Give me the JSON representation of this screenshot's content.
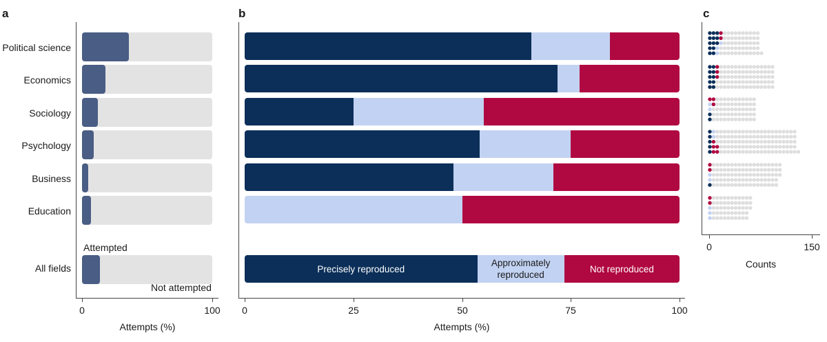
{
  "panels": {
    "a": "a",
    "b": "b",
    "c": "c"
  },
  "colors": {
    "precise": "#0b2f59",
    "approx": "#c2d2f2",
    "not_reproduced": "#b00840",
    "attempted": "#4a5d85",
    "not_attempted": "#e3e3e3",
    "dot_empty": "#dedede"
  },
  "categories": [
    "Political science",
    "Economics",
    "Sociology",
    "Psychology",
    "Business",
    "Education"
  ],
  "all_fields_label": "All fields",
  "panel_a": {
    "xlabel": "Attempts (%)",
    "ticks": [
      "0",
      "100"
    ],
    "attempted_label": "Attempted",
    "not_attempted_label": "Not attempted"
  },
  "panel_b": {
    "xlabel": "Attempts (%)",
    "ticks": [
      "0",
      "25",
      "50",
      "75",
      "100"
    ],
    "legend_labels": {
      "precise": "Precisely reproduced",
      "approx": "Approximately reproduced",
      "not_reproduced": "Not reproduced"
    }
  },
  "panel_c": {
    "xlabel": "Counts",
    "ticks": [
      "0",
      "150"
    ]
  },
  "chart_data": [
    {
      "type": "bar",
      "panel": "a",
      "categories": [
        "Political science",
        "Economics",
        "Sociology",
        "Psychology",
        "Business",
        "Education",
        "All fields"
      ],
      "series": [
        {
          "name": "Attempted",
          "values": [
            36,
            18,
            12,
            9,
            5,
            7,
            14
          ]
        },
        {
          "name": "Not attempted",
          "values": [
            64,
            82,
            88,
            91,
            95,
            93,
            86
          ]
        }
      ],
      "xlabel": "Attempts (%)",
      "xlim": [
        0,
        100
      ]
    },
    {
      "type": "bar",
      "panel": "b",
      "stacked": true,
      "categories": [
        "Political science",
        "Economics",
        "Sociology",
        "Psychology",
        "Business",
        "Education",
        "All fields"
      ],
      "series": [
        {
          "name": "Precisely reproduced",
          "values": [
            66,
            72,
            25,
            54,
            48,
            0,
            53.5
          ]
        },
        {
          "name": "Approximately reproduced",
          "values": [
            18,
            5,
            30,
            21,
            23,
            50,
            20
          ]
        },
        {
          "name": "Not reproduced",
          "values": [
            16,
            23,
            45,
            25,
            29,
            50,
            26.5
          ]
        }
      ],
      "xlabel": "Attempts (%)",
      "xlim": [
        0,
        100
      ]
    },
    {
      "type": "scatter",
      "panel": "c",
      "categories": [
        "Political science",
        "Economics",
        "Sociology",
        "Psychology",
        "Business",
        "Education"
      ],
      "rows_per_category": [
        [
          {
            "precise": 3,
            "approx": 0,
            "not": 1,
            "empty": 10
          },
          {
            "precise": 3,
            "approx": 0,
            "not": 1,
            "empty": 10
          },
          {
            "precise": 3,
            "approx": 1,
            "not": 0,
            "empty": 10
          },
          {
            "precise": 2,
            "approx": 1,
            "not": 0,
            "empty": 11
          },
          {
            "precise": 2,
            "approx": 1,
            "not": 0,
            "empty": 12
          }
        ],
        [
          {
            "precise": 2,
            "approx": 0,
            "not": 1,
            "empty": 15
          },
          {
            "precise": 2,
            "approx": 0,
            "not": 1,
            "empty": 15
          },
          {
            "precise": 2,
            "approx": 0,
            "not": 1,
            "empty": 15
          },
          {
            "precise": 2,
            "approx": 0,
            "not": 0,
            "empty": 16
          },
          {
            "precise": 2,
            "approx": 0,
            "not": 0,
            "empty": 16
          }
        ],
        [
          {
            "precise": 0,
            "approx": 0,
            "not": 2,
            "empty": 11
          },
          {
            "precise": 0,
            "approx": 1,
            "not": 1,
            "empty": 11
          },
          {
            "precise": 0,
            "approx": 1,
            "not": 0,
            "empty": 12
          },
          {
            "precise": 1,
            "approx": 0,
            "not": 0,
            "empty": 12
          },
          {
            "precise": 1,
            "approx": 0,
            "not": 0,
            "empty": 12
          }
        ],
        [
          {
            "precise": 1,
            "approx": 1,
            "not": 0,
            "empty": 22
          },
          {
            "precise": 1,
            "approx": 1,
            "not": 0,
            "empty": 22
          },
          {
            "precise": 1,
            "approx": 0,
            "not": 1,
            "empty": 22
          },
          {
            "precise": 1,
            "approx": 0,
            "not": 2,
            "empty": 21
          },
          {
            "precise": 1,
            "approx": 0,
            "not": 2,
            "empty": 22
          }
        ],
        [
          {
            "precise": 0,
            "approx": 0,
            "not": 1,
            "empty": 19
          },
          {
            "precise": 0,
            "approx": 0,
            "not": 1,
            "empty": 19
          },
          {
            "precise": 0,
            "approx": 1,
            "not": 0,
            "empty": 19
          },
          {
            "precise": 0,
            "approx": 1,
            "not": 0,
            "empty": 18
          },
          {
            "precise": 1,
            "approx": 0,
            "not": 0,
            "empty": 18
          }
        ],
        [
          {
            "precise": 0,
            "approx": 0,
            "not": 1,
            "empty": 11
          },
          {
            "precise": 0,
            "approx": 0,
            "not": 1,
            "empty": 11
          },
          {
            "precise": 0,
            "approx": 1,
            "not": 0,
            "empty": 11
          },
          {
            "precise": 0,
            "approx": 1,
            "not": 0,
            "empty": 10
          },
          {
            "precise": 0,
            "approx": 1,
            "not": 0,
            "empty": 10
          }
        ]
      ],
      "xlabel": "Counts",
      "xlim": [
        0,
        150
      ]
    }
  ]
}
